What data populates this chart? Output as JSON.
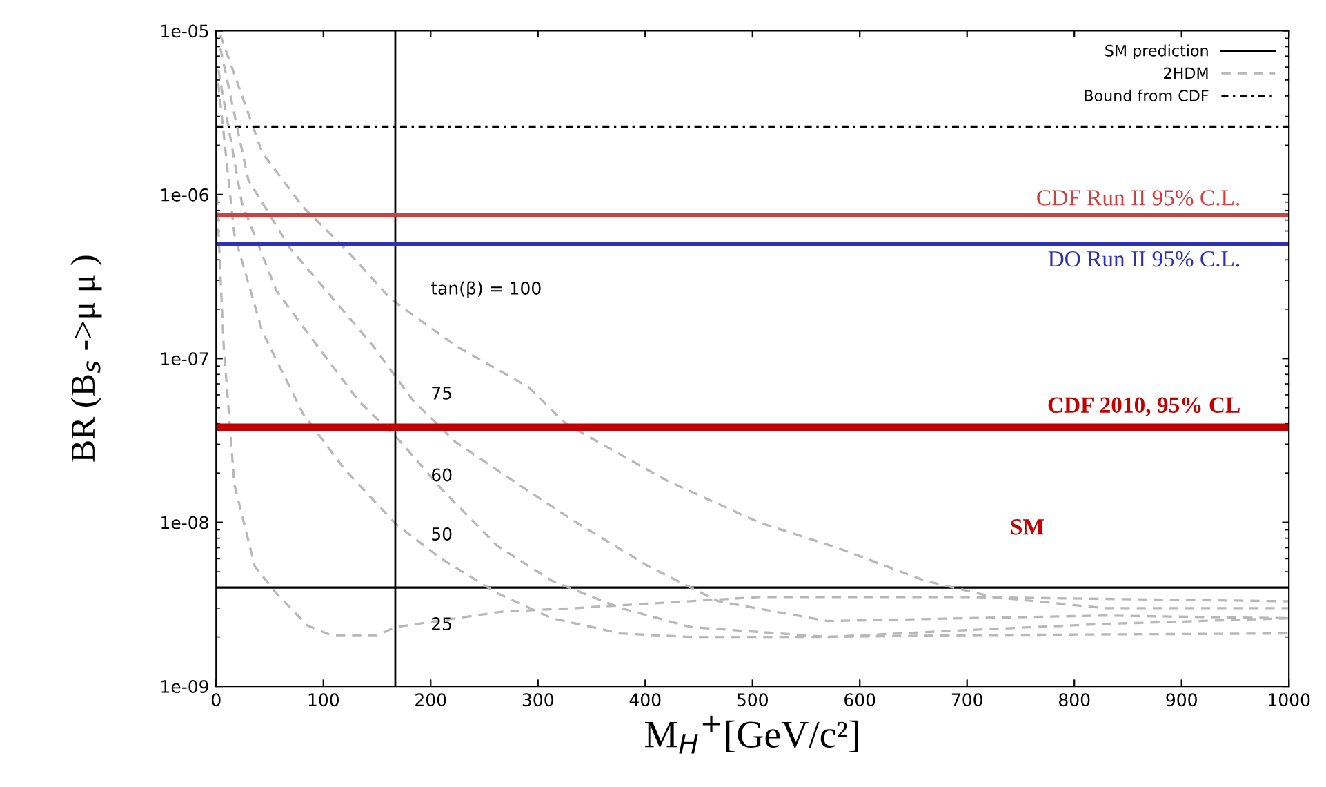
{
  "chart_data": {
    "type": "line",
    "xlabel": "M$_{H}$$^{+}$[GeV/c²]",
    "ylabel": "BR (B$_{s}$ ->μ μ )",
    "log": "y",
    "xlim": [
      0,
      1000
    ],
    "xticks": [
      0,
      100,
      200,
      300,
      400,
      500,
      600,
      700,
      800,
      900,
      1000
    ],
    "ylim": [
      1e-09,
      1e-05
    ],
    "yticks": [
      {
        "value": 1e-09,
        "label": "1e-09"
      },
      {
        "value": 1e-08,
        "label": "1e-08"
      },
      {
        "value": 1e-07,
        "label": "1e-07"
      },
      {
        "value": 1e-06,
        "label": "1e-06"
      },
      {
        "value": 1e-05,
        "label": "1e-05"
      }
    ],
    "grid": false,
    "legend": "top right",
    "series": [
      {
        "name": "SM prediction",
        "color": "#000000",
        "line_style": "solid",
        "x": [
          0,
          1000
        ],
        "values": [
          4e-09,
          4e-09
        ]
      },
      {
        "name": "2HDM",
        "color": "#b8b8b8",
        "line_style": "dashed",
        "x": [
          4,
          43,
          81,
          120,
          163,
          223,
          291,
          326,
          420,
          506,
          579,
          661,
          725,
          828,
          1000
        ],
        "values": [
          9.4e-06,
          1.8e-06,
          8.4e-07,
          4.7e-07,
          2.3e-07,
          1.2e-07,
          6.7e-08,
          4e-08,
          1.8e-08,
          1e-08,
          7e-09,
          4.4e-09,
          3.5e-09,
          3e-09,
          3e-09
        ]
      },
      {
        "name": "Bound from CDF",
        "color": "#000000",
        "line_style": "dotted",
        "x": [
          0,
          1000
        ],
        "values": [
          2.6e-06,
          2.6e-06
        ]
      },
      {
        "color": "#b8b8b8",
        "line_style": "dashed",
        "x": [
          4,
          30,
          69,
          107,
          146,
          184,
          223,
          288,
          339,
          403,
          468,
          570,
          699,
          828,
          1000
        ],
        "values": [
          7.8e-06,
          1.23e-06,
          4.7e-07,
          2.4e-07,
          1.2e-07,
          5.5e-08,
          3.1e-08,
          1.6e-08,
          9.7e-09,
          5.4e-09,
          3.3e-09,
          2.5e-09,
          2.6e-09,
          2.7e-09,
          2.6e-09
        ]
      },
      {
        "color": "#b8b8b8",
        "line_style": "dashed",
        "x": [
          2,
          24,
          56,
          94,
          133,
          172,
          210,
          262,
          313,
          377,
          442,
          570,
          699,
          828,
          1000
        ],
        "values": [
          5.8e-06,
          8.9e-07,
          2.6e-07,
          1.2e-07,
          5.5e-08,
          3.1e-08,
          1.6e-08,
          7.2e-09,
          4.4e-09,
          3e-09,
          2.3e-09,
          2e-09,
          2.2e-09,
          2.4e-09,
          2.6e-09
        ]
      },
      {
        "color": "#b8b8b8",
        "line_style": "dashed",
        "x": [
          2,
          17,
          43,
          81,
          120,
          168,
          210,
          262,
          313,
          377,
          442,
          570,
          699,
          1000
        ],
        "values": [
          4.8e-06,
          5.7e-07,
          1.46e-07,
          4.6e-08,
          2.1e-08,
          9.7e-09,
          6e-09,
          3.7e-09,
          2.6e-09,
          2.1e-09,
          2e-09,
          2e-09,
          2.05e-09,
          2.1e-09
        ]
      },
      {
        "color": "#b8b8b8",
        "line_style": "dashed",
        "x": [
          0,
          7,
          17,
          36,
          56,
          85,
          107,
          150,
          168,
          266,
          335,
          506,
          699,
          1000
        ],
        "values": [
          1.23e-06,
          1.2e-07,
          1.7e-08,
          5.4e-09,
          3.7e-09,
          2.35e-09,
          2.05e-09,
          2.05e-09,
          2.3e-09,
          2.85e-09,
          3e-09,
          3.5e-09,
          3.5e-09,
          3.3e-09
        ]
      }
    ],
    "ref_lines": [
      {
        "axis": "x",
        "value": 167,
        "color": "#000000"
      },
      {
        "axis": "y",
        "value": 7.5e-07,
        "label": "CDF Run II 95% C.L.",
        "color": "#d04040"
      },
      {
        "axis": "y",
        "value": 5e-07,
        "label": "DO Run II 95% C.L.",
        "color": "#3030b0"
      },
      {
        "axis": "y",
        "value": 3.8e-08,
        "label": "CDF 2010, 95% CL",
        "color": "#c00000"
      }
    ],
    "annotations": [
      "tan(β) = 100",
      "75",
      "60",
      "50",
      "25",
      "SM"
    ]
  }
}
